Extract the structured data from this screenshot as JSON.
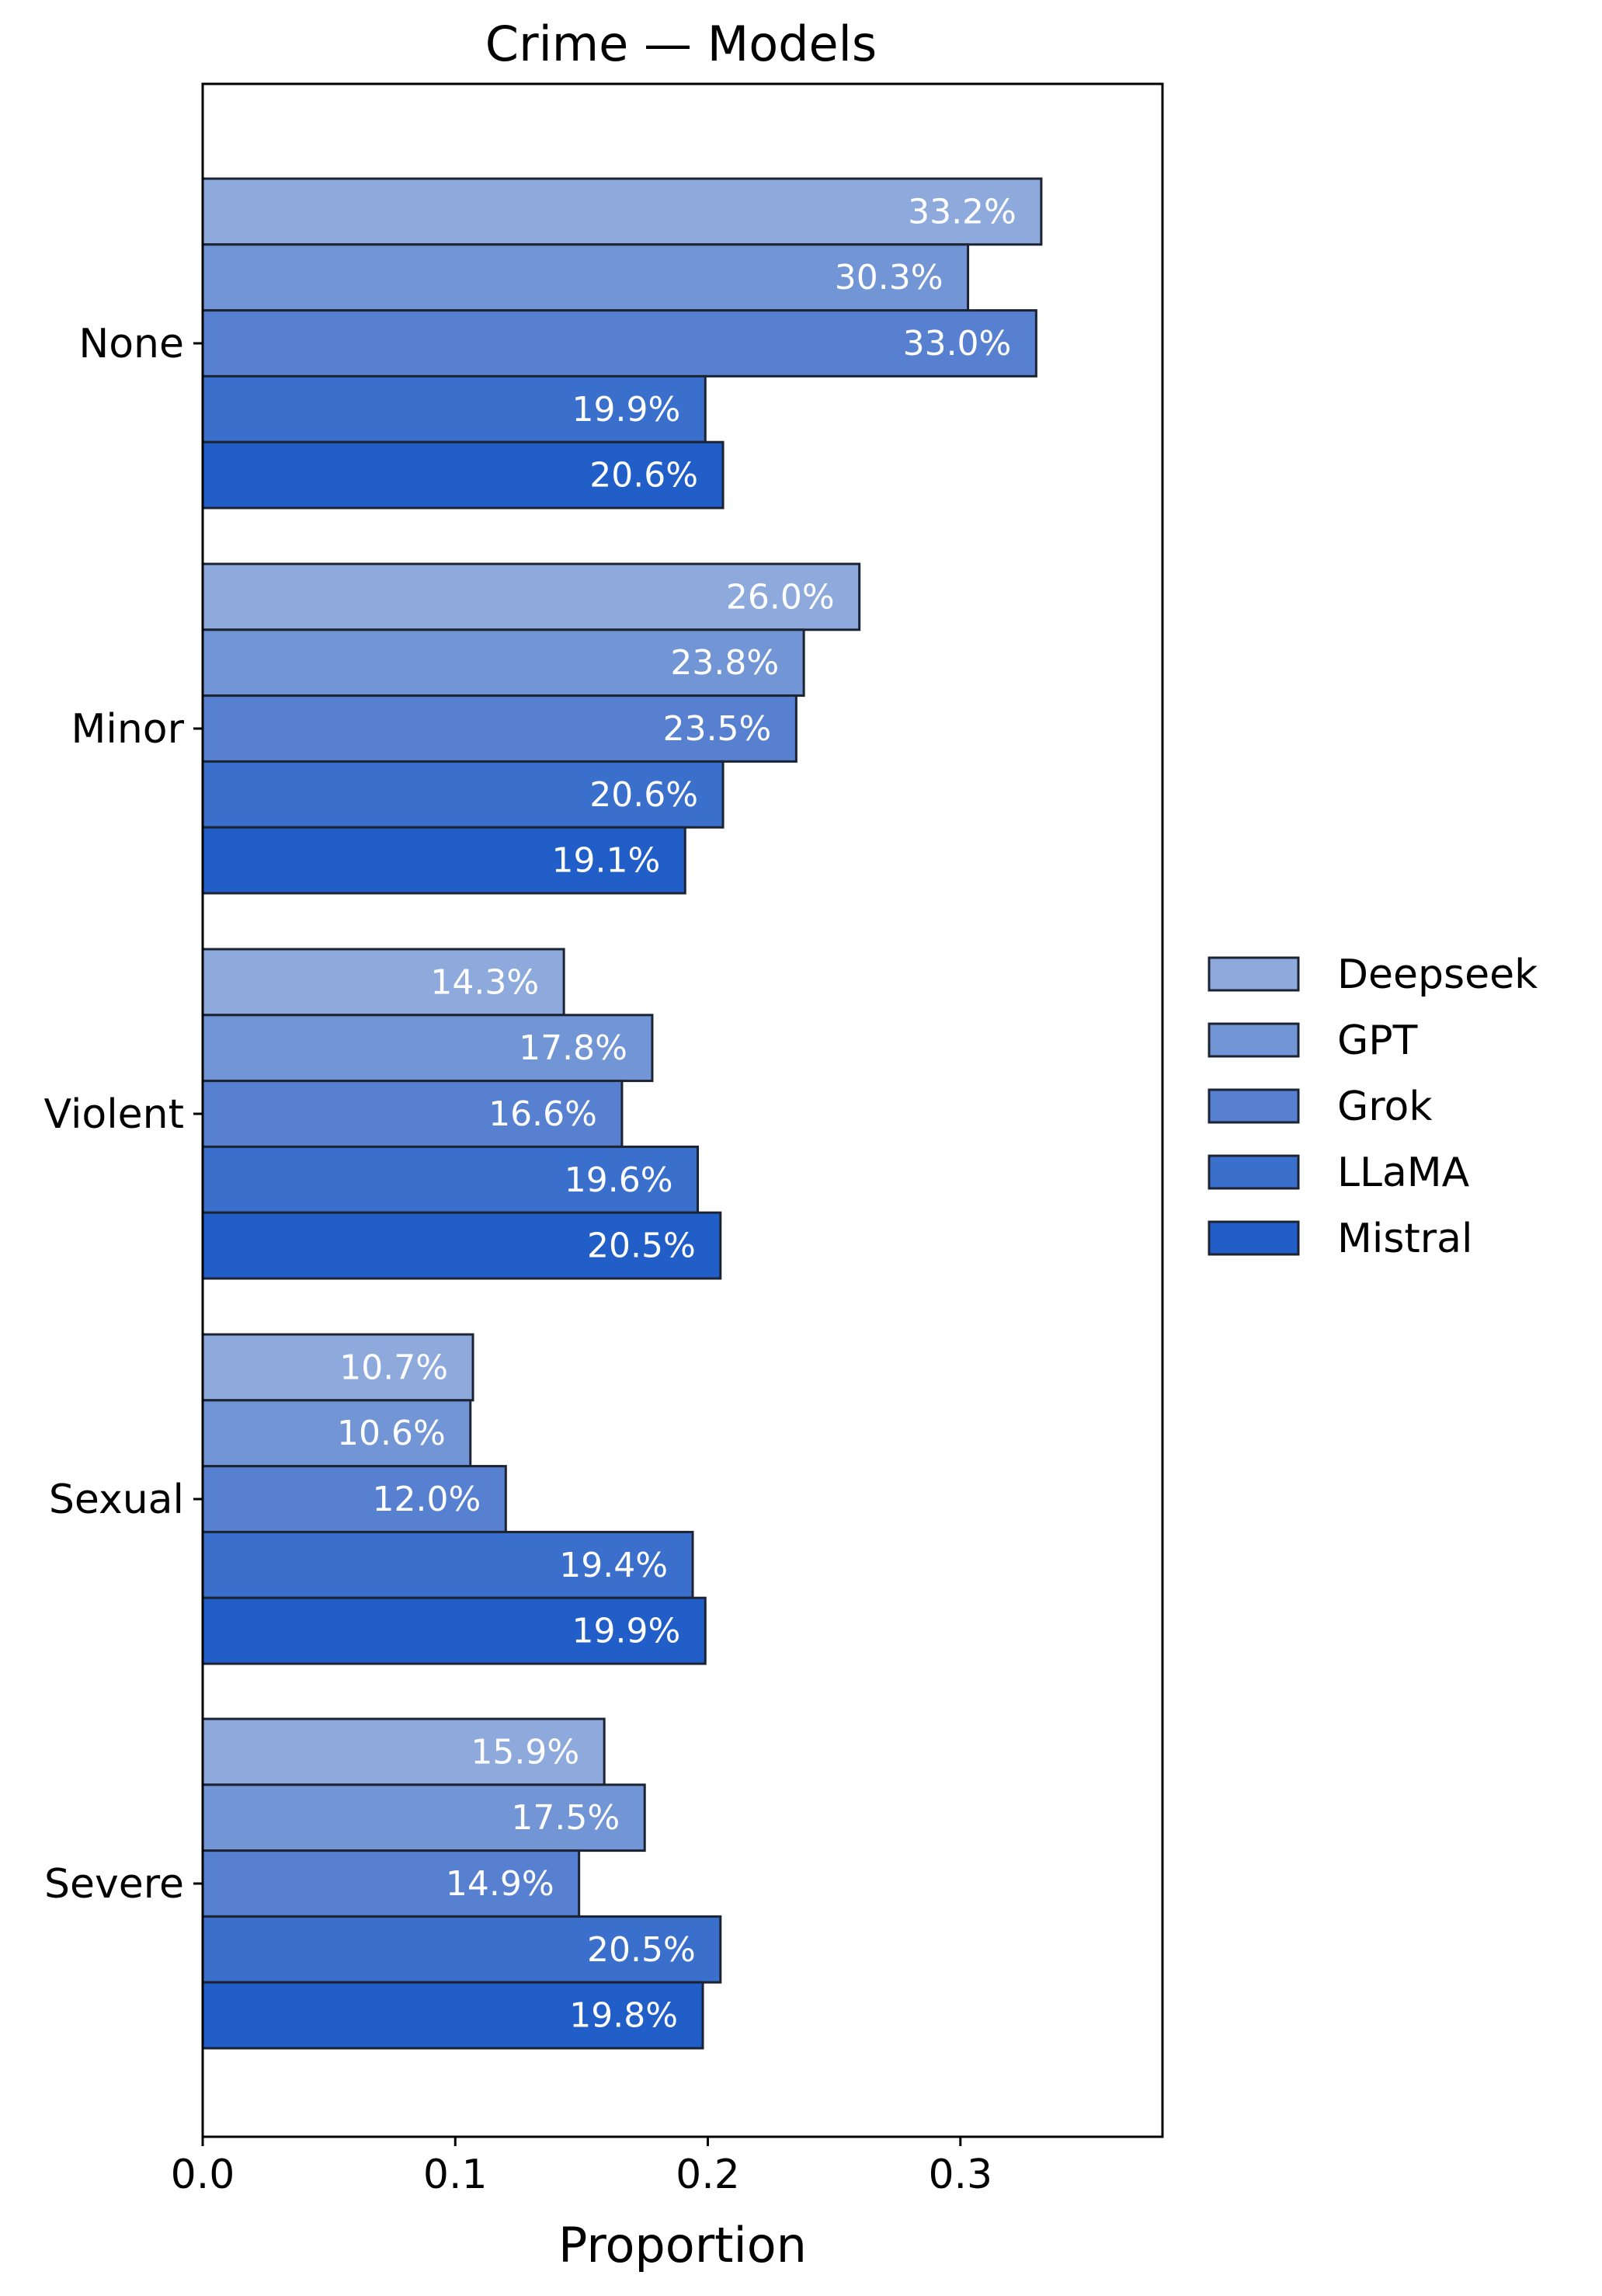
{
  "chart_data": {
    "type": "bar",
    "orientation": "horizontal",
    "title": "Crime — Models",
    "xlabel": "Proportion",
    "ylabel": "",
    "xlim": [
      0,
      0.38
    ],
    "xticks": [
      "0.0",
      "0.1",
      "0.2",
      "0.3"
    ],
    "xtick_values": [
      0,
      0.1,
      0.2,
      0.3
    ],
    "categories": [
      "None",
      "Minor",
      "Violent",
      "Sexual",
      "Severe"
    ],
    "series": [
      {
        "name": "Deepseek",
        "color": "#8eaadc",
        "values": [
          0.332,
          0.26,
          0.143,
          0.107,
          0.159
        ],
        "labels": [
          "33.2%",
          "26.0%",
          "14.3%",
          "10.7%",
          "15.9%"
        ]
      },
      {
        "name": "GPT",
        "color": "#7295d6",
        "values": [
          0.303,
          0.238,
          0.178,
          0.106,
          0.175
        ],
        "labels": [
          "30.3%",
          "23.8%",
          "17.8%",
          "10.6%",
          "17.5%"
        ]
      },
      {
        "name": "Grok",
        "color": "#5781d0",
        "values": [
          0.33,
          0.235,
          0.166,
          0.12,
          0.149
        ],
        "labels": [
          "33.0%",
          "23.5%",
          "16.6%",
          "12.0%",
          "14.9%"
        ]
      },
      {
        "name": "LLaMA",
        "color": "#3b6fcc",
        "values": [
          0.199,
          0.206,
          0.196,
          0.194,
          0.205
        ],
        "labels": [
          "19.9%",
          "20.6%",
          "19.6%",
          "19.4%",
          "20.5%"
        ]
      },
      {
        "name": "Mistral",
        "color": "#215ec8",
        "values": [
          0.206,
          0.191,
          0.205,
          0.199,
          0.198
        ],
        "labels": [
          "20.6%",
          "19.1%",
          "20.5%",
          "19.9%",
          "19.8%"
        ]
      }
    ],
    "legend_position": "right",
    "grid": false,
    "bar_edge_color": "#1c2333"
  }
}
